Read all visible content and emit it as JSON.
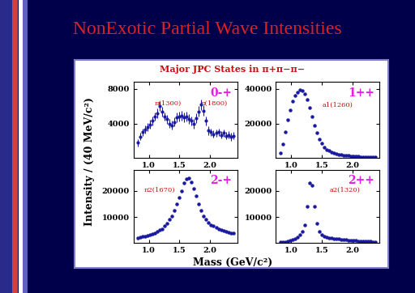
{
  "title": "NonExotic Partial Wave Intensities",
  "panel_title": "Major JPC States in π+π−π−",
  "ylabel": "Intensity / (40 MeV/c²)",
  "xlabel": "Mass (GeV/c²)",
  "chart_data": [
    {
      "type": "scatter",
      "label": "0-+",
      "annotations": [
        "π(1300)",
        "π(1800)"
      ],
      "color": "#1a1aa0",
      "marker": "o",
      "x": [
        0.82,
        0.86,
        0.9,
        0.94,
        0.98,
        1.02,
        1.06,
        1.1,
        1.14,
        1.18,
        1.22,
        1.26,
        1.3,
        1.34,
        1.38,
        1.42,
        1.46,
        1.5,
        1.54,
        1.58,
        1.62,
        1.66,
        1.7,
        1.74,
        1.78,
        1.82,
        1.86,
        1.9,
        1.94,
        1.98,
        2.02,
        2.06,
        2.1,
        2.14,
        2.18,
        2.22,
        2.26,
        2.3,
        2.34,
        2.38
      ],
      "values": [
        1800,
        2500,
        3000,
        3300,
        3600,
        3900,
        4300,
        4800,
        5200,
        6000,
        5400,
        4800,
        4500,
        4000,
        3800,
        4200,
        4700,
        4800,
        4900,
        4700,
        4800,
        4500,
        4300,
        4000,
        4600,
        5400,
        6200,
        5500,
        4300,
        3200,
        3000,
        2800,
        2900,
        3000,
        2700,
        2900,
        2600,
        2700,
        2500,
        2600
      ],
      "errors": [
        400,
        400,
        450,
        450,
        450,
        500,
        500,
        500,
        550,
        550,
        550,
        500,
        500,
        500,
        500,
        500,
        550,
        550,
        550,
        550,
        550,
        550,
        550,
        550,
        550,
        600,
        600,
        600,
        550,
        500,
        450,
        450,
        450,
        450,
        450,
        450,
        450,
        450,
        450,
        450
      ],
      "xlim": [
        0.75,
        2.45
      ],
      "ylim": [
        0,
        8800
      ],
      "xticks": [
        {
          "value": 1.0,
          "label": "1.0"
        },
        1.5,
        {
          "value": 2.0,
          "label": "2.0"
        }
      ],
      "yticks": [
        4000,
        8000
      ]
    },
    {
      "type": "scatter",
      "label": "1++",
      "annotations": [
        "a1(1260)"
      ],
      "color": "#1a1aa0",
      "marker": "o",
      "x": [
        0.82,
        0.86,
        0.9,
        0.94,
        0.98,
        1.02,
        1.06,
        1.1,
        1.14,
        1.18,
        1.22,
        1.26,
        1.3,
        1.34,
        1.38,
        1.42,
        1.46,
        1.5,
        1.54,
        1.58,
        1.62,
        1.66,
        1.7,
        1.74,
        1.78,
        1.82,
        1.86,
        1.9,
        1.94,
        1.98,
        2.02,
        2.06,
        2.1,
        2.14,
        2.18,
        2.22,
        2.26,
        2.3,
        2.34,
        2.38
      ],
      "values": [
        3000,
        8000,
        15000,
        22000,
        28000,
        33000,
        36000,
        38000,
        39500,
        39000,
        37000,
        34000,
        29000,
        24000,
        19000,
        14500,
        11000,
        8500,
        6500,
        5000,
        4200,
        3500,
        3000,
        2500,
        2200,
        2000,
        1800,
        1600,
        1500,
        1300,
        1200,
        1100,
        1000,
        900,
        900,
        800,
        800,
        700,
        700,
        600
      ],
      "xlim": [
        0.75,
        2.45
      ],
      "ylim": [
        0,
        44000
      ],
      "xticks": [
        {
          "value": 1.0,
          "label": "1.0"
        },
        1.5,
        {
          "value": 2.0,
          "label": "2.0"
        }
      ],
      "yticks": [
        20000,
        40000
      ]
    },
    {
      "type": "scatter",
      "label": "2-+",
      "annotations": [
        "π2(1670)"
      ],
      "color": "#1a1aa0",
      "marker": "o",
      "x": [
        0.82,
        0.86,
        0.9,
        0.94,
        0.98,
        1.02,
        1.06,
        1.1,
        1.14,
        1.18,
        1.22,
        1.26,
        1.3,
        1.34,
        1.38,
        1.42,
        1.46,
        1.5,
        1.54,
        1.58,
        1.62,
        1.66,
        1.7,
        1.74,
        1.78,
        1.82,
        1.86,
        1.9,
        1.94,
        1.98,
        2.02,
        2.06,
        2.1,
        2.14,
        2.18,
        2.22,
        2.26,
        2.3,
        2.34,
        2.38
      ],
      "values": [
        2000,
        2200,
        2500,
        2700,
        3000,
        3300,
        3600,
        4000,
        4500,
        5000,
        5500,
        6500,
        7500,
        9000,
        10500,
        12500,
        15000,
        17500,
        20000,
        23000,
        24500,
        25000,
        23500,
        21000,
        18000,
        15000,
        12500,
        10500,
        9000,
        8000,
        7000,
        6500,
        6000,
        5500,
        5000,
        4800,
        4500,
        4200,
        4000,
        3800
      ],
      "xlim": [
        0.75,
        2.45
      ],
      "ylim": [
        0,
        28000
      ],
      "xticks": [
        {
          "value": 1.0,
          "label": "1.0"
        },
        1.5,
        {
          "value": 2.0,
          "label": "2.0"
        }
      ],
      "yticks": [
        10000,
        20000
      ]
    },
    {
      "type": "scatter",
      "label": "2++",
      "annotations": [
        "a2(1320)"
      ],
      "color": "#1a1aa0",
      "marker": "o",
      "x": [
        0.82,
        0.86,
        0.9,
        0.94,
        0.98,
        1.02,
        1.06,
        1.1,
        1.14,
        1.18,
        1.22,
        1.26,
        1.3,
        1.34,
        1.38,
        1.42,
        1.46,
        1.5,
        1.54,
        1.58,
        1.62,
        1.66,
        1.7,
        1.74,
        1.78,
        1.82,
        1.86,
        1.9,
        1.94,
        1.98,
        2.02,
        2.06,
        2.1,
        2.14,
        2.18,
        2.22,
        2.26,
        2.3,
        2.34,
        2.38
      ],
      "values": [
        400,
        500,
        600,
        800,
        1000,
        1300,
        1700,
        2300,
        3200,
        4500,
        7000,
        14000,
        23000,
        22000,
        14000,
        7500,
        4500,
        3200,
        2600,
        2200,
        2000,
        1900,
        1800,
        1700,
        1600,
        1500,
        1400,
        1300,
        1200,
        1100,
        1000,
        950,
        900,
        850,
        800,
        750,
        700,
        650,
        600,
        550
      ],
      "xlim": [
        0.75,
        2.45
      ],
      "ylim": [
        0,
        28000
      ],
      "xticks": [
        {
          "value": 1.0,
          "label": "1.0"
        },
        1.5,
        {
          "value": 2.0,
          "label": "2.0"
        }
      ],
      "yticks": [
        10000,
        20000
      ]
    }
  ]
}
